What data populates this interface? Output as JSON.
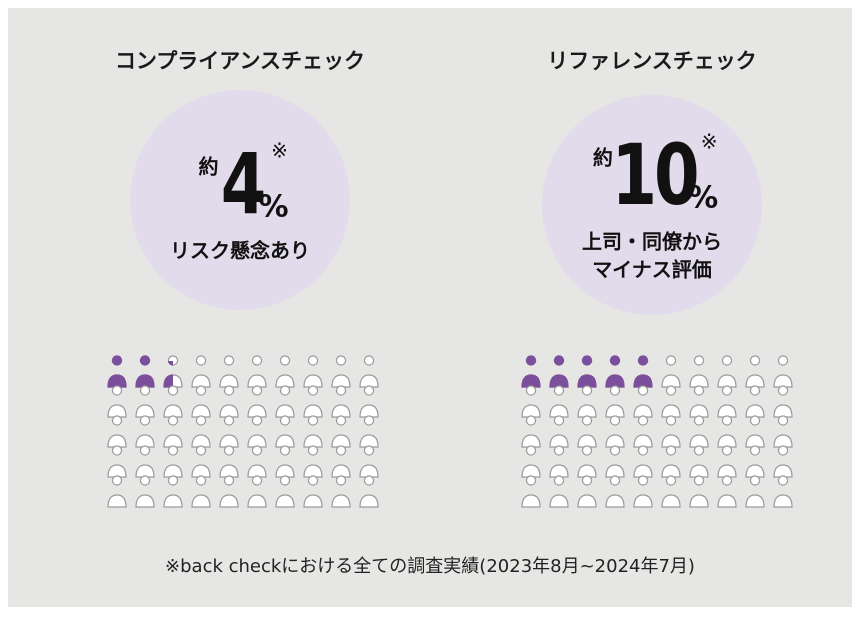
{
  "panels": [
    {
      "title": "コンプライアンスチェック",
      "prefix": "約",
      "value": 4,
      "unit": "%",
      "mark": "※",
      "caption": [
        "リスク懸念あり"
      ],
      "icons_total": 50,
      "icons_filled": 2.5
    },
    {
      "title": "リファレンスチェック",
      "prefix": "約",
      "value": 10,
      "unit": "%",
      "mark": "※",
      "caption": [
        "上司・同僚から",
        "マイナス評価"
      ],
      "icons_total": 50,
      "icons_filled": 5
    }
  ],
  "footnote": "※back checkにおける全ての調査実績(2023年8月~2024年7月)"
}
